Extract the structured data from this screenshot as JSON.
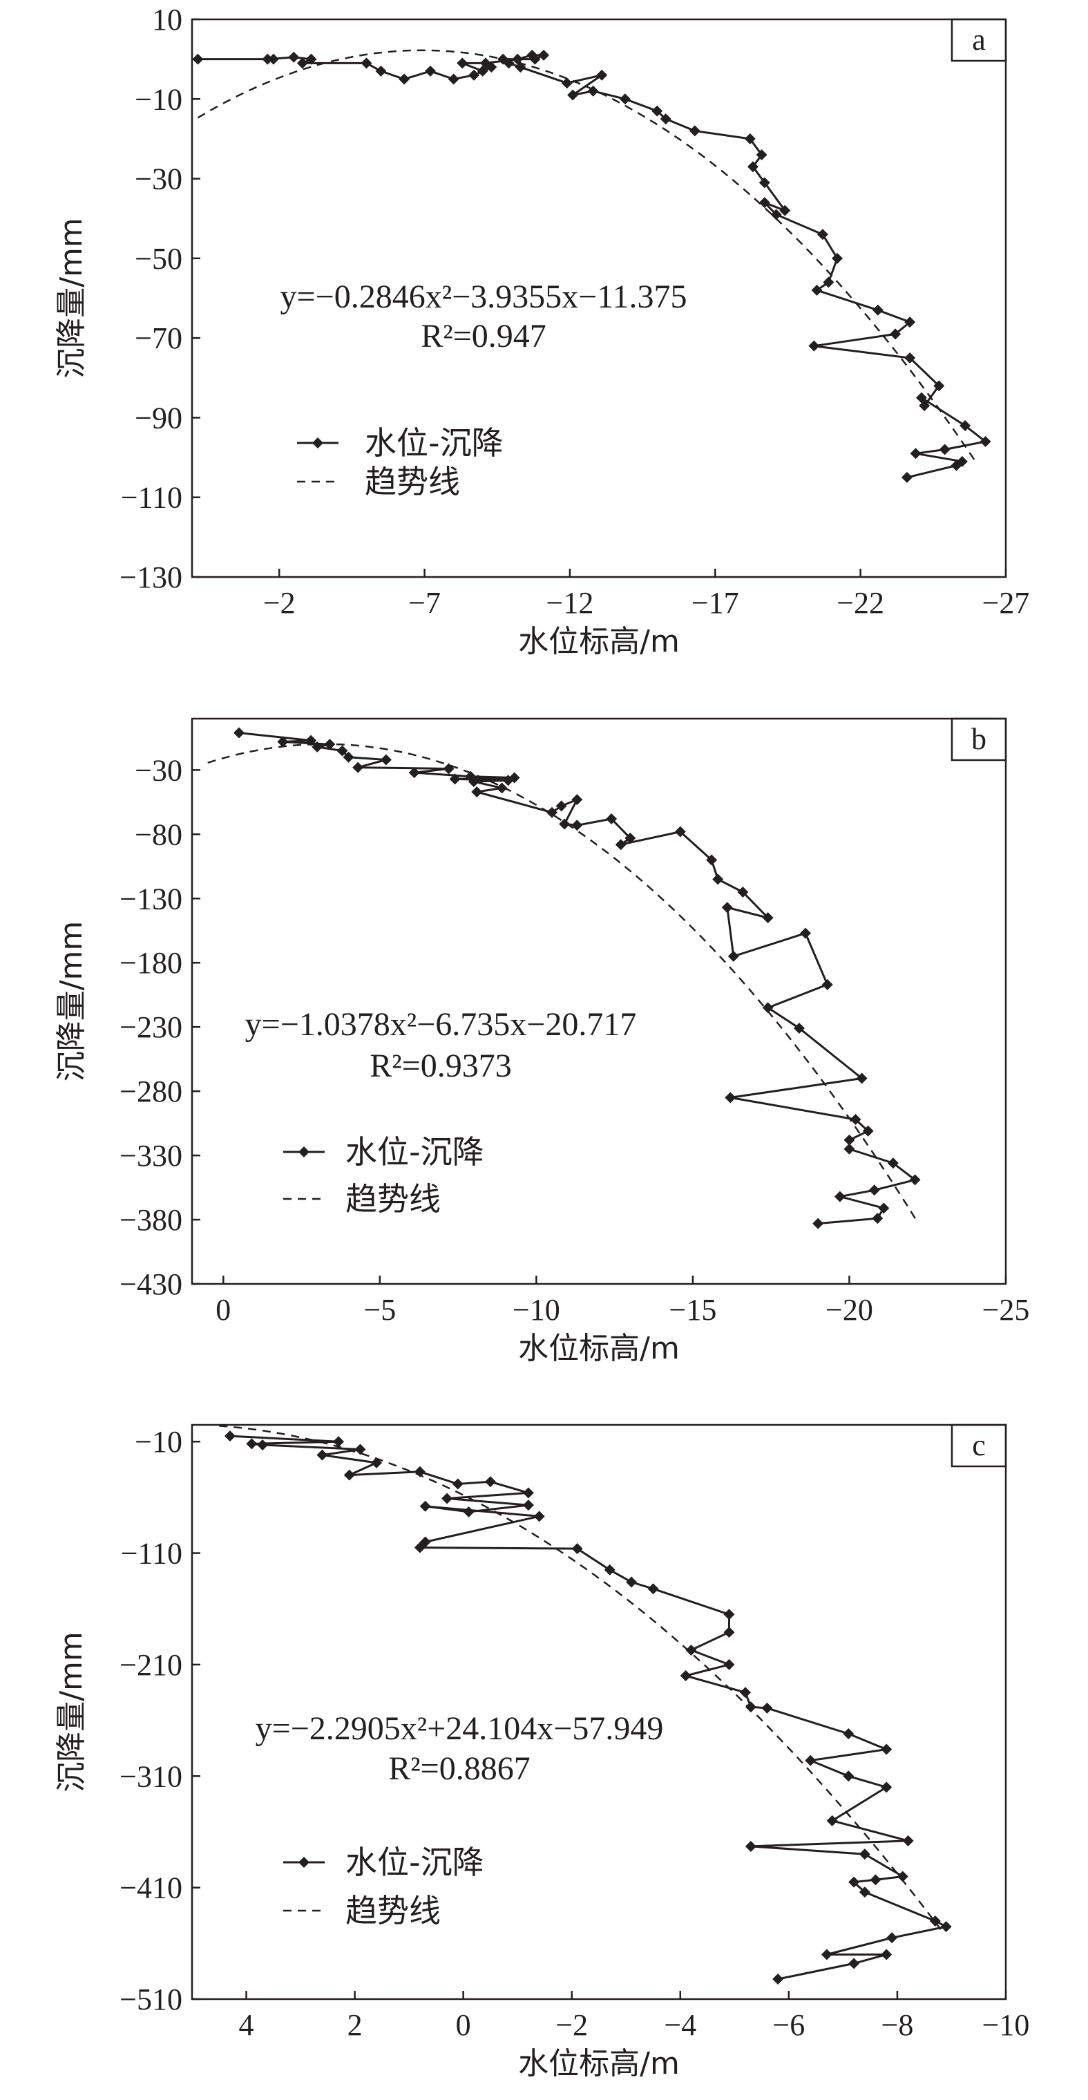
{
  "legend": {
    "series_label": "水位-沉降",
    "trend_label": "趋势线"
  },
  "chart_data": [
    {
      "type": "line",
      "panel_label": "a",
      "xlabel": "水位标高/m",
      "ylabel": "沉降量/mm",
      "xlim": [
        1,
        -27
      ],
      "ylim": [
        -130,
        10
      ],
      "xticks": [
        -2,
        -7,
        -12,
        -17,
        -22,
        -27
      ],
      "yticks": [
        10,
        -10,
        -30,
        -50,
        -70,
        -90,
        -110,
        -130
      ],
      "tick_labels_x": [
        "−2",
        "−7",
        "−12",
        "−17",
        "−22",
        "−27"
      ],
      "tick_labels_y": [
        "10",
        "−10",
        "−30",
        "−50",
        "−70",
        "−90",
        "−110",
        "−130"
      ],
      "equation": "y=−0.2846x²−3.9355x−11.375",
      "r2": "R²=0.947",
      "equation_parts": {
        "a": "−0.2846",
        "b": "−3.9355",
        "c": "−11.375",
        "r2": "0.947"
      },
      "trend": {
        "a": -0.2846,
        "b": -3.9355,
        "c": -11.375,
        "x_range": [
          0.8,
          -26
        ]
      },
      "series": [
        {
          "name": "水位-沉降",
          "x": [
            0.8,
            -1.8,
            -1.6,
            -2.5,
            -3.1,
            -2.8,
            -5.0,
            -5.5,
            -6.3,
            -7.2,
            -8.0,
            -8.7,
            -9.3,
            -9.0,
            -8.3,
            -9.1,
            -10.2,
            -10.7,
            -11.1,
            -10.8,
            -9.7,
            -9.9,
            -10.3,
            -11.9,
            -13.1,
            -12.1,
            -12.8,
            -13.9,
            -15.0,
            -15.3,
            -16.3,
            -18.2,
            -18.6,
            -18.3,
            -18.7,
            -19.4,
            -18.7,
            -19.1,
            -20.7,
            -21.2,
            -20.9,
            -20.5,
            -22.6,
            -23.7,
            -23.2,
            -20.4,
            -23.7,
            -24.7,
            -24.2,
            -24.1,
            -25.6,
            -26.3,
            -24.9,
            -23.9,
            -25.5,
            -25.3,
            -23.6
          ],
          "y": [
            0,
            0,
            0,
            0.5,
            0,
            -1,
            -1,
            -3,
            -5,
            -3,
            -5,
            -4,
            -2,
            -3,
            -1,
            -1,
            0,
            1,
            1,
            0,
            0,
            -1,
            -2,
            -6,
            -4,
            -9,
            -8,
            -10,
            -13,
            -15,
            -18,
            -20,
            -24,
            -27,
            -31,
            -38,
            -36,
            -39,
            -44,
            -50,
            -56,
            -58,
            -63,
            -66,
            -69,
            -72,
            -75,
            -82,
            -87,
            -85,
            -92,
            -96,
            -98,
            -99,
            -101,
            -102,
            -105
          ]
        }
      ]
    },
    {
      "type": "line",
      "panel_label": "b",
      "xlabel": "水位标高/m",
      "ylabel": "沉降量/mm",
      "xlim": [
        1,
        -25
      ],
      "ylim": [
        -430,
        10
      ],
      "xticks": [
        0,
        -5,
        -10,
        -15,
        -20,
        -25
      ],
      "yticks": [
        -30,
        -80,
        -130,
        -180,
        -230,
        -280,
        -330,
        -380,
        -430
      ],
      "tick_labels_x": [
        "0",
        "−5",
        "−10",
        "−15",
        "−20",
        "−25"
      ],
      "tick_labels_y": [
        "−30",
        "−80",
        "−130",
        "−180",
        "−230",
        "−280",
        "−330",
        "−380",
        "−430"
      ],
      "equation": "y=−1.0378x²−6.735x−20.717",
      "r2": "R²=0.9373",
      "equation_parts": {
        "a": "−1.0378",
        "b": "−6.735",
        "c": "−20.717",
        "r2": "0.9373"
      },
      "trend": {
        "a": -1.0378,
        "b": -6.735,
        "c": -20.717,
        "x_range": [
          0.5,
          -22.2
        ]
      },
      "series": [
        {
          "name": "水位-沉降",
          "x": [
            -0.5,
            -2.8,
            -1.9,
            -3.4,
            -3.0,
            -3.8,
            -4.0,
            -5.2,
            -4.3,
            -7.2,
            -6.1,
            -7.9,
            -9.3,
            -7.4,
            -9.1,
            -8.0,
            -8.9,
            -8.1,
            -10.5,
            -10.8,
            -11.3,
            -10.9,
            -11.3,
            -12.4,
            -13.0,
            -12.7,
            -14.6,
            -15.6,
            -15.8,
            -16.6,
            -17.4,
            -16.1,
            -16.3,
            -18.6,
            -19.3,
            -17.4,
            -18.4,
            -20.4,
            -16.2,
            -20.2,
            -20.6,
            -20.0,
            -20.0,
            -21.4,
            -22.1,
            -20.8,
            -19.7,
            -21.1,
            -20.9,
            -19.0
          ],
          "y": [
            -1,
            -7,
            -8,
            -10,
            -12,
            -15,
            -20,
            -22,
            -28,
            -29,
            -32,
            -35,
            -36,
            -37,
            -38,
            -39,
            -44,
            -47,
            -63,
            -58,
            -53,
            -72,
            -73,
            -68,
            -83,
            -88,
            -78,
            -100,
            -115,
            -125,
            -145,
            -137,
            -175,
            -157,
            -197,
            -215,
            -231,
            -270,
            -285,
            -302,
            -311,
            -318,
            -325,
            -336,
            -349,
            -357,
            -362,
            -371,
            -379,
            -383
          ]
        }
      ]
    },
    {
      "type": "line",
      "panel_label": "c",
      "xlabel": "水位标高/m",
      "ylabel": "沉降量/mm",
      "xlim": [
        5,
        -10
      ],
      "ylim": [
        -510,
        5
      ],
      "xticks": [
        4,
        2,
        0,
        -2,
        -4,
        -6,
        -8,
        -10
      ],
      "yticks": [
        -10,
        -110,
        -210,
        -310,
        -410,
        -510
      ],
      "tick_labels_x": [
        "4",
        "2",
        "0",
        "−2",
        "−4",
        "−6",
        "−8",
        "−10"
      ],
      "tick_labels_y": [
        "−10",
        "−110",
        "−210",
        "−310",
        "−410",
        "−510"
      ],
      "equation": "y=−2.2905x²+24.104x−57.949",
      "r2": "R²=0.8867",
      "equation_parts": {
        "a": "−2.2905",
        "b": "+24.104",
        "c": "−57.949",
        "r2": "0.8867"
      },
      "trend": {
        "a": -2.2905,
        "b": 24.104,
        "c": -57.949,
        "x_range": [
          4.5,
          -8.8
        ]
      },
      "series": [
        {
          "name": "水位-沉降",
          "x": [
            4.3,
            2.3,
            3.9,
            3.7,
            1.9,
            2.6,
            1.6,
            2.1,
            0.8,
            0.1,
            -0.5,
            -1.2,
            0.3,
            -1.2,
            -0.1,
            0.7,
            -1.4,
            0.7,
            0.8,
            -2.1,
            -2.7,
            -3.1,
            -3.5,
            -4.9,
            -4.9,
            -4.2,
            -4.9,
            -4.1,
            -5.2,
            -5.3,
            -5.6,
            -7.1,
            -7.8,
            -6.4,
            -7.1,
            -7.8,
            -6.8,
            -8.2,
            -5.3,
            -7.4,
            -8.1,
            -7.6,
            -7.2,
            -7.4,
            -8.7,
            -8.9,
            -7.9,
            -6.7,
            -7.8,
            -7.2,
            -5.8
          ],
          "y": [
            -5,
            -10,
            -12,
            -13,
            -17,
            -22,
            -29,
            -40,
            -37,
            -48,
            -46,
            -56,
            -61,
            -67,
            -73,
            -68,
            -77,
            -100,
            -105,
            -106,
            -125,
            -136,
            -142,
            -165,
            -181,
            -197,
            -210,
            -220,
            -235,
            -248,
            -249,
            -272,
            -286,
            -296,
            -310,
            -320,
            -350,
            -368,
            -373,
            -380,
            -400,
            -403,
            -405,
            -414,
            -440,
            -445,
            -455,
            -470,
            -470,
            -478,
            -492
          ]
        }
      ]
    }
  ]
}
